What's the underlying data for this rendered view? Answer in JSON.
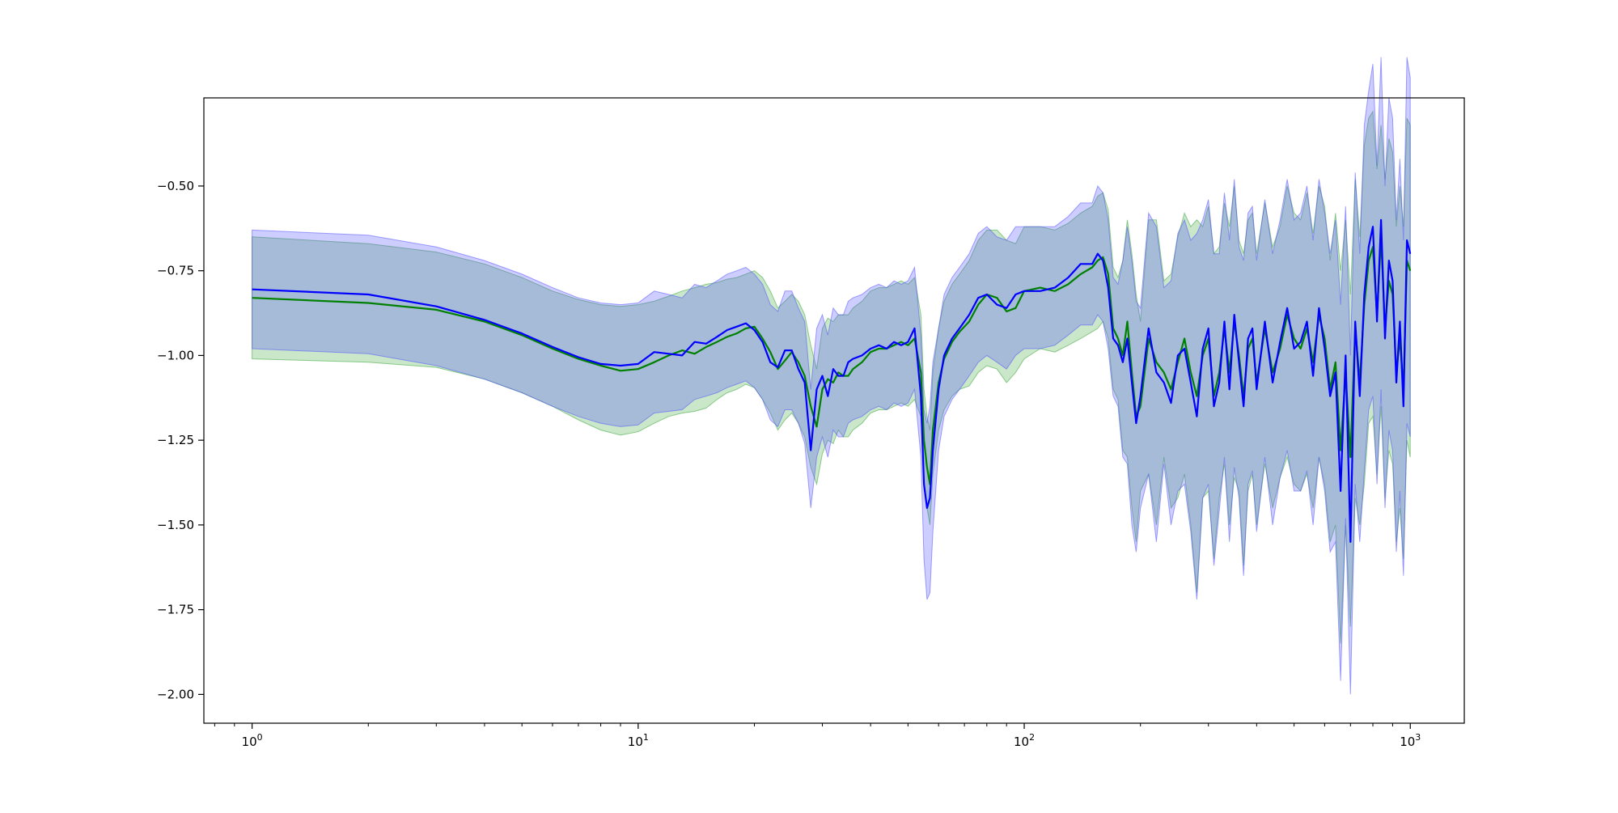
{
  "chart_data": {
    "type": "line",
    "title": "",
    "xlabel": "",
    "ylabel": "",
    "xscale": "log",
    "xlim": [
      0.75,
      1380
    ],
    "ylim": [
      -2.085,
      -0.24
    ],
    "grid": false,
    "legend": "none",
    "x_ticks": [
      {
        "value": 1,
        "base": "10",
        "exp": "0"
      },
      {
        "value": 10,
        "base": "10",
        "exp": "1"
      },
      {
        "value": 100,
        "base": "10",
        "exp": "2"
      },
      {
        "value": 1000,
        "base": "10",
        "exp": "3"
      }
    ],
    "y_ticks": [
      {
        "value": -0.5,
        "label": "−0.50"
      },
      {
        "value": -0.75,
        "label": "−0.75"
      },
      {
        "value": -1.0,
        "label": "−1.00"
      },
      {
        "value": -1.25,
        "label": "−1.25"
      },
      {
        "value": -1.5,
        "label": "−1.50"
      },
      {
        "value": -1.75,
        "label": "−1.75"
      },
      {
        "value": -2.0,
        "label": "−2.00"
      }
    ],
    "series": [
      {
        "color": "#008000",
        "band_color": "#2ca02c",
        "band_opacity": 0.25,
        "x": [
          1,
          2,
          3,
          4,
          5,
          6,
          7,
          8,
          9,
          10,
          11,
          12,
          13,
          14,
          15,
          16,
          17,
          18,
          19,
          20,
          21,
          22,
          23,
          24,
          25,
          26,
          27,
          28,
          29,
          30,
          31,
          32,
          33,
          34,
          35,
          36,
          38,
          40,
          42,
          44,
          46,
          48,
          50,
          52,
          54,
          55,
          56,
          57,
          58,
          60,
          62,
          65,
          68,
          72,
          76,
          80,
          85,
          90,
          95,
          100,
          110,
          120,
          130,
          140,
          150,
          155,
          160,
          165,
          170,
          175,
          180,
          185,
          190,
          195,
          200,
          210,
          220,
          230,
          240,
          250,
          260,
          270,
          280,
          290,
          300,
          310,
          320,
          330,
          340,
          350,
          360,
          370,
          380,
          390,
          400,
          420,
          440,
          460,
          480,
          500,
          520,
          540,
          560,
          580,
          600,
          620,
          640,
          660,
          680,
          700,
          720,
          740,
          760,
          780,
          800,
          820,
          840,
          860,
          880,
          900,
          920,
          940,
          960,
          980,
          1000
        ],
        "y": [
          -0.83,
          -0.845,
          -0.865,
          -0.9,
          -0.94,
          -0.98,
          -1.01,
          -1.03,
          -1.045,
          -1.04,
          -1.02,
          -1.0,
          -0.985,
          -0.995,
          -0.975,
          -0.96,
          -0.945,
          -0.935,
          -0.92,
          -0.915,
          -0.95,
          -0.99,
          -1.04,
          -1.015,
          -0.99,
          -1.02,
          -1.06,
          -1.15,
          -1.21,
          -1.1,
          -1.07,
          -1.08,
          -1.05,
          -1.06,
          -1.06,
          -1.04,
          -1.02,
          -0.99,
          -0.98,
          -0.98,
          -0.97,
          -0.96,
          -0.97,
          -0.95,
          -1.05,
          -1.25,
          -1.33,
          -1.38,
          -1.22,
          -1.08,
          -1.01,
          -0.96,
          -0.93,
          -0.9,
          -0.85,
          -0.82,
          -0.83,
          -0.87,
          -0.86,
          -0.81,
          -0.8,
          -0.81,
          -0.79,
          -0.76,
          -0.74,
          -0.72,
          -0.71,
          -0.76,
          -0.92,
          -0.95,
          -1.0,
          -0.9,
          -1.05,
          -1.18,
          -1.15,
          -0.95,
          -1.02,
          -1.05,
          -1.1,
          -1.02,
          -0.95,
          -1.05,
          -1.12,
          -1.0,
          -0.95,
          -1.12,
          -1.05,
          -0.92,
          -1.05,
          -0.9,
          -1.0,
          -1.12,
          -0.98,
          -0.95,
          -1.08,
          -0.92,
          -1.05,
          -0.98,
          -0.88,
          -0.95,
          -0.98,
          -0.92,
          -1.02,
          -0.88,
          -0.95,
          -1.1,
          -1.02,
          -1.28,
          -1.05,
          -1.3,
          -0.92,
          -1.08,
          -0.85,
          -0.72,
          -0.68,
          -0.88,
          -0.65,
          -0.92,
          -0.78,
          -0.82,
          -1.05,
          -0.95,
          -1.1,
          -0.72,
          -0.75
        ],
        "lower": [
          -1.01,
          -1.02,
          -1.035,
          -1.07,
          -1.11,
          -1.15,
          -1.19,
          -1.22,
          -1.235,
          -1.225,
          -1.2,
          -1.18,
          -1.17,
          -1.165,
          -1.155,
          -1.13,
          -1.11,
          -1.1,
          -1.085,
          -1.095,
          -1.13,
          -1.17,
          -1.22,
          -1.19,
          -1.17,
          -1.2,
          -1.24,
          -1.33,
          -1.38,
          -1.29,
          -1.25,
          -1.26,
          -1.22,
          -1.24,
          -1.24,
          -1.22,
          -1.2,
          -1.17,
          -1.16,
          -1.16,
          -1.15,
          -1.14,
          -1.15,
          -1.13,
          -1.18,
          -1.36,
          -1.45,
          -1.5,
          -1.35,
          -1.22,
          -1.16,
          -1.12,
          -1.1,
          -1.09,
          -1.05,
          -1.03,
          -1.04,
          -1.08,
          -1.05,
          -1.01,
          -0.98,
          -0.99,
          -0.97,
          -0.95,
          -0.93,
          -0.92,
          -0.9,
          -0.95,
          -1.1,
          -1.13,
          -1.28,
          -1.3,
          -1.45,
          -1.55,
          -1.4,
          -1.35,
          -1.5,
          -1.3,
          -1.45,
          -1.42,
          -1.35,
          -1.5,
          -1.7,
          -1.42,
          -1.4,
          -1.6,
          -1.42,
          -1.32,
          -1.5,
          -1.36,
          -1.4,
          -1.62,
          -1.4,
          -1.35,
          -1.5,
          -1.32,
          -1.45,
          -1.36,
          -1.3,
          -1.38,
          -1.4,
          -1.35,
          -1.45,
          -1.3,
          -1.38,
          -1.55,
          -1.5,
          -1.85,
          -1.5,
          -1.8,
          -1.42,
          -1.5,
          -1.38,
          -1.2,
          -1.18,
          -1.35,
          -1.15,
          -1.42,
          -1.28,
          -1.32,
          -1.55,
          -1.45,
          -1.6,
          -1.25,
          -1.3
        ],
        "upper": [
          -0.65,
          -0.67,
          -0.695,
          -0.73,
          -0.77,
          -0.81,
          -0.835,
          -0.85,
          -0.855,
          -0.85,
          -0.84,
          -0.825,
          -0.81,
          -0.8,
          -0.79,
          -0.785,
          -0.775,
          -0.77,
          -0.76,
          -0.75,
          -0.77,
          -0.81,
          -0.86,
          -0.84,
          -0.82,
          -0.84,
          -0.88,
          -0.97,
          -1.04,
          -0.92,
          -0.89,
          -0.9,
          -0.88,
          -0.88,
          -0.88,
          -0.86,
          -0.84,
          -0.81,
          -0.8,
          -0.8,
          -0.79,
          -0.78,
          -0.79,
          -0.77,
          -0.88,
          -1.1,
          -1.18,
          -1.22,
          -1.05,
          -0.92,
          -0.84,
          -0.79,
          -0.76,
          -0.72,
          -0.66,
          -0.63,
          -0.63,
          -0.66,
          -0.67,
          -0.62,
          -0.62,
          -0.63,
          -0.61,
          -0.58,
          -0.56,
          -0.53,
          -0.52,
          -0.57,
          -0.74,
          -0.77,
          -0.72,
          -0.6,
          -0.7,
          -0.82,
          -0.9,
          -0.6,
          -0.6,
          -0.78,
          -0.76,
          -0.65,
          -0.58,
          -0.62,
          -0.6,
          -0.62,
          -0.56,
          -0.7,
          -0.68,
          -0.55,
          -0.62,
          -0.5,
          -0.66,
          -0.7,
          -0.6,
          -0.58,
          -0.7,
          -0.55,
          -0.68,
          -0.62,
          -0.5,
          -0.58,
          -0.6,
          -0.52,
          -0.64,
          -0.5,
          -0.56,
          -0.72,
          -0.58,
          -0.75,
          -0.6,
          -0.82,
          -0.48,
          -0.65,
          -0.38,
          -0.3,
          -0.28,
          -0.45,
          -0.32,
          -0.48,
          -0.36,
          -0.4,
          -0.62,
          -0.5,
          -0.62,
          -0.3,
          -0.32
        ]
      },
      {
        "color": "#0000ff",
        "band_color": "#4a4aff",
        "band_opacity": 0.28,
        "x": [
          1,
          2,
          3,
          4,
          5,
          6,
          7,
          8,
          9,
          10,
          11,
          12,
          13,
          14,
          15,
          16,
          17,
          18,
          19,
          20,
          21,
          22,
          23,
          24,
          25,
          26,
          27,
          28,
          29,
          30,
          31,
          32,
          33,
          34,
          35,
          36,
          38,
          40,
          42,
          44,
          46,
          48,
          50,
          52,
          54,
          55,
          56,
          57,
          58,
          60,
          62,
          65,
          68,
          72,
          76,
          80,
          85,
          90,
          95,
          100,
          110,
          120,
          130,
          140,
          150,
          155,
          160,
          165,
          170,
          175,
          180,
          185,
          190,
          195,
          200,
          210,
          220,
          230,
          240,
          250,
          260,
          270,
          280,
          290,
          300,
          310,
          320,
          330,
          340,
          350,
          360,
          370,
          380,
          390,
          400,
          420,
          440,
          460,
          480,
          500,
          520,
          540,
          560,
          580,
          600,
          620,
          640,
          660,
          680,
          700,
          720,
          740,
          760,
          780,
          800,
          820,
          840,
          860,
          880,
          900,
          920,
          940,
          960,
          980,
          1000
        ],
        "y": [
          -0.805,
          -0.82,
          -0.855,
          -0.895,
          -0.935,
          -0.975,
          -1.005,
          -1.025,
          -1.03,
          -1.025,
          -0.99,
          -0.995,
          -1.0,
          -0.96,
          -0.965,
          -0.945,
          -0.925,
          -0.915,
          -0.905,
          -0.925,
          -0.96,
          -1.02,
          -1.035,
          -0.985,
          -0.985,
          -1.04,
          -1.08,
          -1.28,
          -1.1,
          -1.06,
          -1.12,
          -1.04,
          -1.06,
          -1.06,
          -1.02,
          -1.01,
          -1.0,
          -0.98,
          -0.97,
          -0.98,
          -0.96,
          -0.97,
          -0.96,
          -0.92,
          -1.12,
          -1.38,
          -1.45,
          -1.42,
          -1.28,
          -1.1,
          -1.0,
          -0.95,
          -0.92,
          -0.88,
          -0.83,
          -0.82,
          -0.85,
          -0.86,
          -0.82,
          -0.81,
          -0.81,
          -0.8,
          -0.77,
          -0.73,
          -0.73,
          -0.7,
          -0.72,
          -0.8,
          -0.95,
          -0.97,
          -1.02,
          -0.95,
          -1.08,
          -1.2,
          -1.12,
          -0.92,
          -1.05,
          -1.08,
          -1.14,
          -1.0,
          -0.98,
          -1.08,
          -1.18,
          -0.98,
          -0.92,
          -1.15,
          -1.08,
          -0.9,
          -1.1,
          -0.88,
          -1.02,
          -1.15,
          -0.95,
          -0.92,
          -1.1,
          -0.9,
          -1.08,
          -0.96,
          -0.86,
          -0.98,
          -0.96,
          -0.9,
          -1.06,
          -0.86,
          -0.98,
          -1.12,
          -1.05,
          -1.4,
          -1.0,
          -1.55,
          -0.9,
          -1.12,
          -0.82,
          -0.68,
          -0.62,
          -0.9,
          -0.6,
          -0.95,
          -0.72,
          -0.78,
          -1.08,
          -0.9,
          -1.15,
          -0.66,
          -0.7
        ],
        "lower": [
          -0.98,
          -0.995,
          -1.03,
          -1.07,
          -1.11,
          -1.15,
          -1.18,
          -1.2,
          -1.21,
          -1.205,
          -1.17,
          -1.165,
          -1.16,
          -1.13,
          -1.12,
          -1.11,
          -1.095,
          -1.085,
          -1.075,
          -1.095,
          -1.13,
          -1.19,
          -1.21,
          -1.16,
          -1.16,
          -1.2,
          -1.26,
          -1.45,
          -1.3,
          -1.24,
          -1.3,
          -1.22,
          -1.24,
          -1.24,
          -1.2,
          -1.19,
          -1.18,
          -1.16,
          -1.15,
          -1.16,
          -1.14,
          -1.15,
          -1.14,
          -1.1,
          -1.3,
          -1.6,
          -1.72,
          -1.7,
          -1.52,
          -1.28,
          -1.18,
          -1.13,
          -1.1,
          -1.06,
          -1.02,
          -1.0,
          -1.02,
          -1.04,
          -1.0,
          -0.98,
          -0.98,
          -0.97,
          -0.94,
          -0.91,
          -0.91,
          -0.88,
          -0.9,
          -0.98,
          -1.12,
          -1.15,
          -1.3,
          -1.32,
          -1.5,
          -1.58,
          -1.45,
          -1.35,
          -1.55,
          -1.32,
          -1.5,
          -1.4,
          -1.38,
          -1.52,
          -1.72,
          -1.42,
          -1.38,
          -1.62,
          -1.46,
          -1.3,
          -1.55,
          -1.33,
          -1.42,
          -1.65,
          -1.38,
          -1.34,
          -1.52,
          -1.3,
          -1.5,
          -1.36,
          -1.28,
          -1.4,
          -1.4,
          -1.34,
          -1.5,
          -1.3,
          -1.4,
          -1.58,
          -1.55,
          -1.96,
          -1.48,
          -2.0,
          -1.38,
          -1.55,
          -1.34,
          -1.16,
          -1.12,
          -1.38,
          -1.1,
          -1.45,
          -1.22,
          -1.28,
          -1.58,
          -1.4,
          -1.65,
          -1.2,
          -1.24
        ],
        "upper": [
          -0.63,
          -0.645,
          -0.68,
          -0.72,
          -0.76,
          -0.8,
          -0.83,
          -0.845,
          -0.85,
          -0.845,
          -0.81,
          -0.82,
          -0.83,
          -0.79,
          -0.8,
          -0.78,
          -0.76,
          -0.75,
          -0.74,
          -0.76,
          -0.79,
          -0.85,
          -0.87,
          -0.81,
          -0.81,
          -0.86,
          -0.9,
          -1.1,
          -0.92,
          -0.88,
          -0.94,
          -0.86,
          -0.88,
          -0.88,
          -0.84,
          -0.83,
          -0.82,
          -0.8,
          -0.79,
          -0.8,
          -0.78,
          -0.79,
          -0.78,
          -0.74,
          -0.94,
          -1.16,
          -1.2,
          -1.15,
          -1.02,
          -0.92,
          -0.82,
          -0.77,
          -0.74,
          -0.7,
          -0.64,
          -0.62,
          -0.65,
          -0.66,
          -0.62,
          -0.62,
          -0.62,
          -0.62,
          -0.59,
          -0.55,
          -0.55,
          -0.5,
          -0.52,
          -0.6,
          -0.77,
          -0.79,
          -0.72,
          -0.62,
          -0.72,
          -0.84,
          -0.86,
          -0.58,
          -0.62,
          -0.8,
          -0.78,
          -0.64,
          -0.6,
          -0.66,
          -0.64,
          -0.6,
          -0.54,
          -0.7,
          -0.7,
          -0.52,
          -0.66,
          -0.48,
          -0.68,
          -0.72,
          -0.58,
          -0.56,
          -0.72,
          -0.54,
          -0.7,
          -0.6,
          -0.48,
          -0.6,
          -0.58,
          -0.5,
          -0.66,
          -0.48,
          -0.58,
          -0.7,
          -0.6,
          -0.85,
          -0.56,
          -1.0,
          -0.46,
          -0.7,
          -0.32,
          -0.22,
          -0.14,
          -0.44,
          -0.12,
          -0.5,
          -0.24,
          -0.3,
          -0.6,
          -0.42,
          -0.66,
          -0.12,
          -0.18
        ]
      }
    ]
  }
}
